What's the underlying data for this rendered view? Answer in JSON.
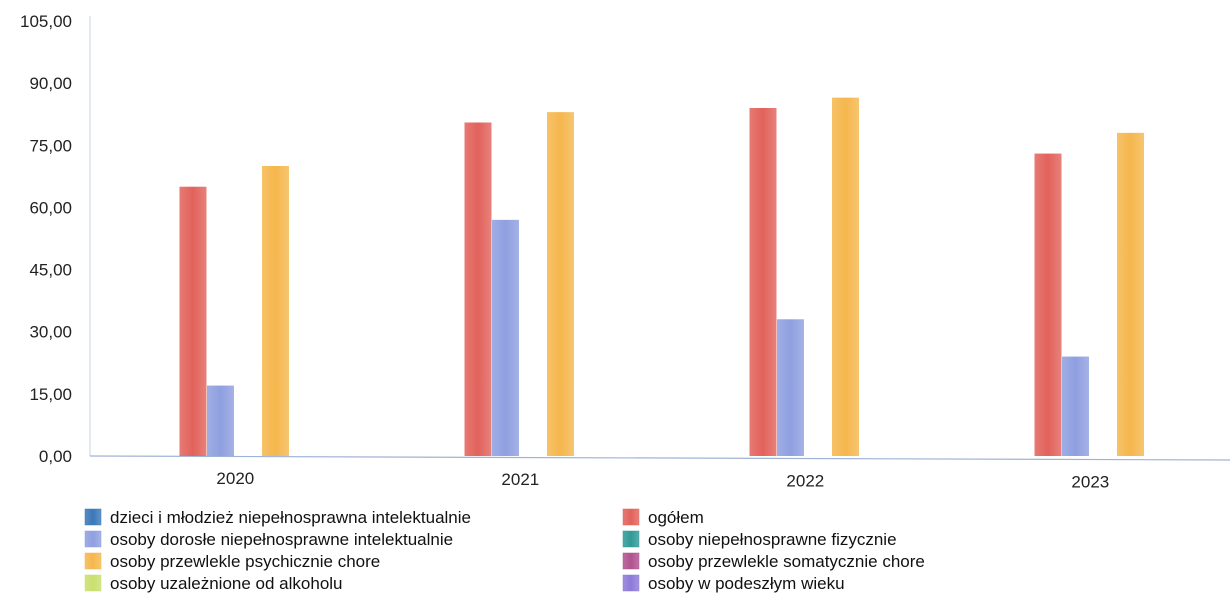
{
  "chart_data": {
    "type": "bar",
    "title": "",
    "xlabel": "",
    "ylabel": "",
    "ylim": [
      0,
      105
    ],
    "yticks": [
      0,
      15,
      30,
      45,
      60,
      75,
      90,
      105
    ],
    "ytick_labels": [
      "0,00",
      "15,00",
      "30,00",
      "45,00",
      "60,00",
      "75,00",
      "90,00",
      "105,00"
    ],
    "categories": [
      "2020",
      "2021",
      "2022",
      "2023"
    ],
    "grid": false,
    "legend_position": "bottom",
    "series": [
      {
        "name": "dzieci i młodzież niepełnosprawna intelektualnie",
        "color": "#3a78b8",
        "values": [
          0,
          0,
          0,
          0
        ]
      },
      {
        "name": "ogółem",
        "color": "#e2625b",
        "values": [
          65,
          80.5,
          84,
          73
        ]
      },
      {
        "name": "osoby dorosłe niepełnosprawne intelektualnie",
        "color": "#8f9fe0",
        "values": [
          17,
          57,
          33,
          24
        ]
      },
      {
        "name": "osoby niepełnosprawne fizycznie",
        "color": "#2f9a98",
        "values": [
          0,
          0,
          0,
          0
        ]
      },
      {
        "name": "osoby przewlekle psychicznie chore",
        "color": "#f5b74d",
        "values": [
          70,
          83,
          86.5,
          78
        ]
      },
      {
        "name": "osoby przewlekle somatycznie chore",
        "color": "#b0528e",
        "values": [
          0,
          0,
          0,
          0
        ]
      },
      {
        "name": "osoby uzależnione od alkoholu",
        "color": "#c9df6e",
        "values": [
          0,
          0,
          0,
          0
        ]
      },
      {
        "name": "osoby w podeszłym wieku",
        "color": "#8d7ad8",
        "values": [
          0,
          0,
          0,
          0
        ]
      }
    ]
  }
}
